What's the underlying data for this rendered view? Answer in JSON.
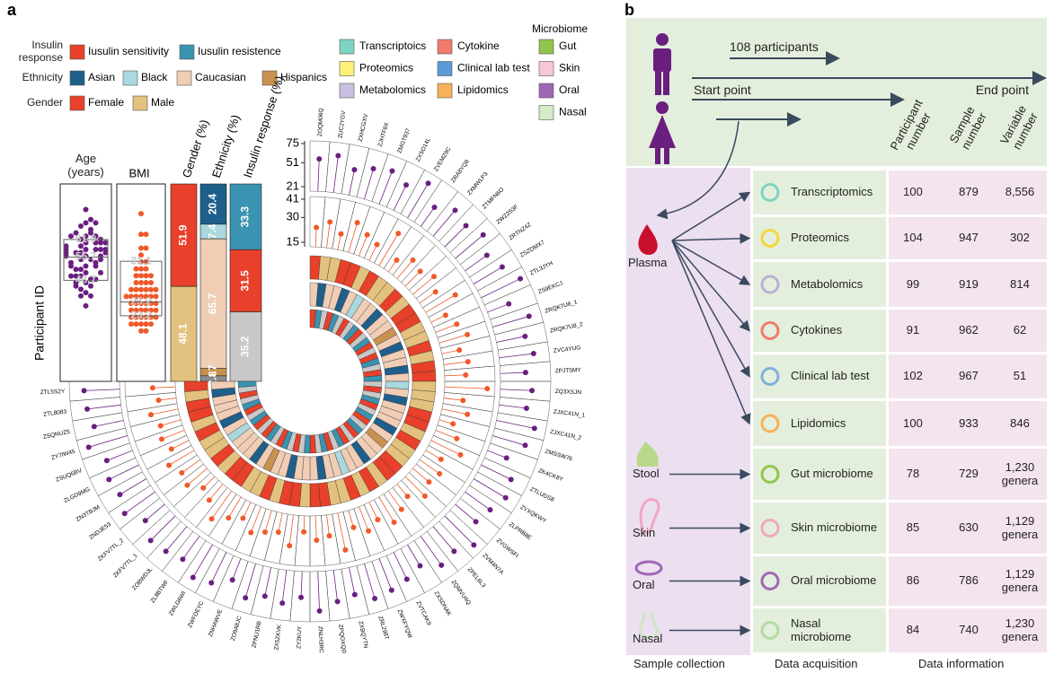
{
  "panel_a": {
    "label": "a",
    "legend": {
      "insulin": {
        "title": "Insulin response",
        "items": [
          {
            "name": "Iusulin sensitivity",
            "color": "#e8402a"
          },
          {
            "name": "Iusulin resistence",
            "color": "#3a93b0"
          }
        ]
      },
      "ethnicity": {
        "title": "Ethnicity",
        "items": [
          {
            "name": "Asian",
            "color": "#1f5f8b"
          },
          {
            "name": "Black",
            "color": "#a9d8de"
          },
          {
            "name": "Caucasian",
            "color": "#f0cdb5"
          },
          {
            "name": "Hispanics",
            "color": "#c9914f"
          }
        ]
      },
      "gender": {
        "title": "Gender",
        "items": [
          {
            "name": "Female",
            "color": "#e8402a"
          },
          {
            "name": "Male",
            "color": "#e3c17e"
          }
        ]
      },
      "omics": {
        "items": [
          {
            "name": "Transcriptoics",
            "color": "#7fd3c2"
          },
          {
            "name": "Proteomics",
            "color": "#fff07a"
          },
          {
            "name": "Metabolomics",
            "color": "#c9bfe0"
          },
          {
            "name": "Cytokine",
            "color": "#f27a6b"
          },
          {
            "name": "Clinical lab test",
            "color": "#5b9bd5"
          },
          {
            "name": "Lipidomics",
            "color": "#f5b25a"
          }
        ]
      },
      "microbiome": {
        "title": "Microbiome",
        "items": [
          {
            "name": "Gut",
            "color": "#93c54b"
          },
          {
            "name": "Skin",
            "color": "#f7c6d9"
          },
          {
            "name": "Oral",
            "color": "#a067b5"
          },
          {
            "name": "Nasal",
            "color": "#d5ecc8"
          }
        ]
      }
    },
    "headers": {
      "age": "Age (years)",
      "bmi": "BMI",
      "gender": "Gender (%)",
      "ethnicity": "Ethnicity (%)",
      "insulin": "Insulin response (%)"
    },
    "y_label": "Participant ID",
    "age_lim": [
      21,
      75
    ],
    "bmi_lim": [
      15,
      41
    ],
    "age_stats": [
      {
        "value": 61.0,
        "label": "61.0"
      },
      55.7,
      48.7
    ],
    "bmi_stats": [
      31.1,
      23.2,
      25.2
    ],
    "gender_pct": {
      "values": [
        51.9,
        48.1
      ],
      "colors": [
        "#e8402a",
        "#e3c17e"
      ]
    },
    "ethnicity_pct": {
      "values": [
        20.4,
        7.4,
        65.7,
        3.7,
        2.8
      ],
      "colors": [
        "#1f5f8b",
        "#a9d8de",
        "#f0cdb5",
        "#c9914f",
        "#8c8c8c"
      ]
    },
    "insulin_pct": {
      "values": [
        33.3,
        31.5,
        35.2
      ],
      "colors": [
        "#3a93b0",
        "#e8402a",
        "#c8c8c8"
      ]
    },
    "circle": {
      "age_ticks": [
        21,
        51,
        75
      ],
      "bmi_ticks": [
        15,
        30,
        41
      ],
      "ids": [
        "ZOQM06Q",
        "ZUC2YGV",
        "ZXHCGXV",
        "ZJHTF8X",
        "ZMGT937",
        "ZXSO14L",
        "ZVEMZ9C",
        "ZRA8YQ8",
        "ZXMWLP3",
        "ZTMFN6O",
        "ZWZ2S3F",
        "ZRTNZ4Z",
        "ZSZDMX7",
        "ZTL3JYH",
        "ZS9EKCJ",
        "ZRQK7U8_1",
        "ZRQK7U8_2",
        "ZVC4YUG",
        "ZPJT5MY",
        "ZQ3XSJN",
        "ZJXC41N_1",
        "ZJXC41N_2",
        "ZMSSW76",
        "ZK4CK8Y",
        "ZTLUDS8",
        "ZYXQKWY",
        "ZLPRB8E",
        "ZVGWSFI",
        "ZVM4N7A",
        "ZPEL6L3",
        "ZQMVU4Q",
        "ZXSDNAK",
        "ZVTCAK9",
        "ZWXFYQW",
        "ZRL298T",
        "ZXBQYTN",
        "ZPQOXQD",
        "ZNLH3RC",
        "ZY2KUY",
        "ZX5ZKVK",
        "ZPNU1RB",
        "ZO9A8JC",
        "ZNHAWVE",
        "ZWFDEYC",
        "ZWLG6WI",
        "ZL9BTWF",
        "ZOBWDJL",
        "ZKFV7TL_1",
        "ZKFV7TL_2",
        "ZNDJE53",
        "ZN3TBJM",
        "ZLGD9MG",
        "ZSUQ6BV",
        "ZY7IW45",
        "ZSQNUZ5",
        "ZTL8083",
        "ZTL5S2Y"
      ],
      "age": [
        56,
        62,
        48,
        55,
        60,
        51,
        66,
        45,
        58,
        53,
        61,
        49,
        57,
        70,
        44,
        63,
        52,
        59,
        47,
        55,
        50,
        64,
        58,
        41,
        57,
        62,
        54,
        49,
        67,
        56,
        60,
        46,
        53,
        58,
        61,
        50,
        55,
        65,
        48,
        57,
        52,
        60,
        44,
        58,
        63,
        51,
        56,
        59,
        47,
        62,
        54,
        57,
        50,
        66,
        53,
        58,
        60
      ],
      "bmi": [
        24,
        28,
        22,
        31,
        26,
        23,
        35,
        21,
        27,
        25,
        29,
        24,
        33,
        22,
        26,
        30,
        23,
        27,
        25,
        38,
        24,
        28,
        21,
        26,
        32,
        23,
        27,
        25,
        29,
        22,
        26,
        30,
        24,
        28,
        23,
        35,
        25,
        27,
        22,
        31,
        24,
        26,
        29,
        23,
        27,
        33,
        25,
        22,
        28,
        26,
        30,
        24,
        27,
        25,
        29,
        23,
        26
      ],
      "gender": [
        0,
        1,
        1,
        0,
        0,
        1,
        0,
        1,
        1,
        0,
        1,
        0,
        0,
        1,
        1,
        0,
        1,
        0,
        0,
        1,
        1,
        1,
        0,
        0,
        1,
        0,
        1,
        1,
        0,
        0,
        1,
        0,
        1,
        0,
        1,
        1,
        0,
        0,
        1,
        0,
        0,
        1,
        0,
        1,
        1,
        0,
        0,
        1,
        0,
        1,
        1,
        0,
        1,
        0,
        0,
        1,
        0
      ],
      "ethnicity": [
        2,
        0,
        2,
        2,
        0,
        2,
        1,
        2,
        2,
        0,
        2,
        2,
        3,
        2,
        0,
        2,
        2,
        0,
        2,
        1,
        2,
        0,
        2,
        2,
        2,
        0,
        2,
        3,
        2,
        2,
        0,
        2,
        2,
        1,
        2,
        2,
        0,
        2,
        2,
        2,
        0,
        2,
        2,
        3,
        2,
        0,
        2,
        2,
        2,
        1,
        2,
        0,
        2,
        2,
        2,
        0,
        2
      ],
      "insulin": [
        0,
        1,
        null,
        0,
        1,
        null,
        0,
        null,
        1,
        0,
        null,
        1,
        0,
        null,
        0,
        1,
        null,
        0,
        1,
        null,
        0,
        null,
        1,
        0,
        null,
        1,
        0,
        null,
        1,
        0,
        null,
        0,
        1,
        null,
        0,
        1,
        null,
        0,
        1,
        null,
        0,
        null,
        1,
        0,
        null,
        1,
        0,
        null,
        0,
        1,
        null,
        0,
        1,
        null,
        0,
        null,
        1
      ]
    }
  },
  "panel_b": {
    "label": "b",
    "participants": "108 participants",
    "start": "Start point",
    "end": "End point",
    "headers": [
      "Participant number",
      "Sample number",
      "Variable number"
    ],
    "samples": [
      "Plasma",
      "Stool",
      "Skin",
      "Oral",
      "Nasal"
    ],
    "rows": [
      [
        "Transcriptomics",
        100,
        879,
        "8,556"
      ],
      [
        "Proteomics",
        104,
        947,
        302
      ],
      [
        "Metabolomics",
        99,
        919,
        814
      ],
      [
        "Cytokines",
        91,
        962,
        62
      ],
      [
        "Clinical lab test",
        102,
        967,
        51
      ],
      [
        "Lipidomics",
        100,
        933,
        846
      ],
      [
        "Gut microbiome",
        78,
        729,
        "1,230 genera"
      ],
      [
        "Skin microbiome",
        85,
        630,
        "1,129 genera"
      ],
      [
        "Oral microbiome",
        86,
        786,
        "1,129 genera"
      ],
      [
        "Nasal microbiome",
        84,
        740,
        "1,230 genera"
      ]
    ],
    "footer": [
      "Sample collection",
      "Data acquisition",
      "Data information"
    ]
  }
}
